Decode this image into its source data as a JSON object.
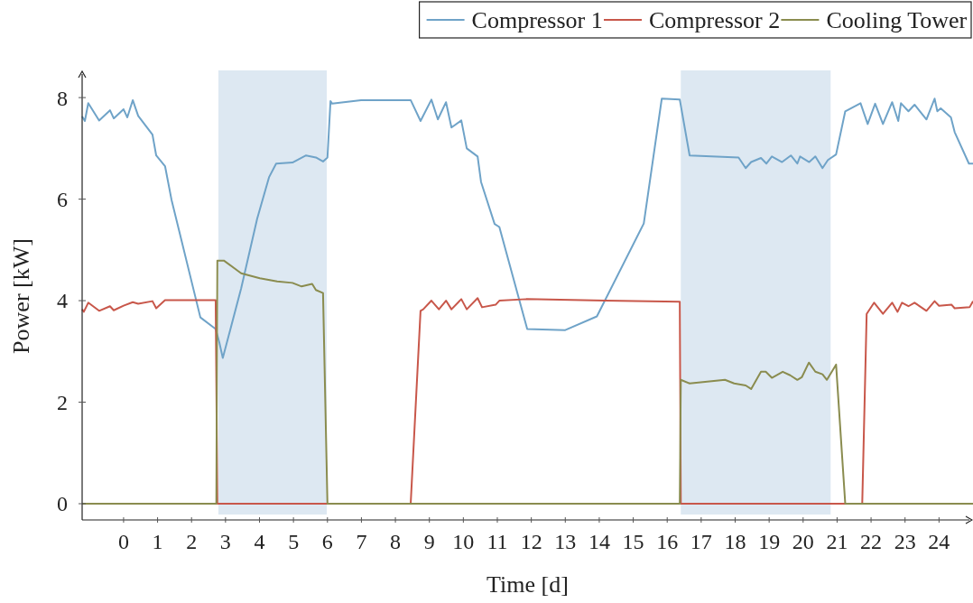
{
  "chart_data": {
    "type": "line",
    "xlabel": "Time [d]",
    "ylabel": "Power [kW]",
    "xlim": [
      -1.22,
      25.0
    ],
    "ylim": [
      -0.32,
      8.5
    ],
    "xticks": [
      0,
      1,
      2,
      3,
      4,
      5,
      6,
      7,
      8,
      9,
      10,
      11,
      12,
      13,
      14,
      15,
      16,
      17,
      18,
      19,
      20,
      21,
      22,
      23,
      24
    ],
    "yticks": [
      0,
      2,
      4,
      6,
      8
    ],
    "legend": "top right",
    "grid": false,
    "line_style": "solid",
    "marker": "none",
    "bands": [
      {
        "axis": "x",
        "from": 2.79,
        "to": 5.98,
        "color": "#dde8f2"
      },
      {
        "axis": "x",
        "from": 16.4,
        "to": 20.81,
        "color": "#dde8f2"
      }
    ],
    "series": [
      {
        "name": "Compressor 1",
        "color": "#6fa3c8",
        "x": [
          -1.22,
          -1.14,
          -1.04,
          -0.72,
          -0.4,
          -0.29,
          0,
          0.11,
          0.27,
          0.43,
          0.85,
          0.96,
          1.22,
          1.41,
          2.26,
          2.71,
          2.82,
          2.92,
          3.46,
          3.93,
          4.28,
          4.49,
          4.97,
          5.37,
          5.66,
          5.87,
          6.0,
          6.09,
          6.14,
          6.99,
          8.45,
          8.74,
          9.06,
          9.25,
          9.49,
          9.65,
          9.94,
          10.1,
          10.42,
          10.52,
          10.92,
          11.06,
          11.88,
          13.0,
          13.93,
          15.31,
          15.84,
          16.37,
          16.66,
          18.1,
          18.31,
          18.47,
          18.76,
          18.92,
          19.08,
          19.38,
          19.64,
          19.83,
          19.91,
          20.18,
          20.36,
          20.57,
          20.73,
          20.97,
          21.24,
          21.69,
          21.9,
          22.12,
          22.35,
          22.62,
          22.8,
          22.88,
          23.1,
          23.28,
          23.63,
          23.87,
          23.95,
          24.05,
          24.35,
          24.46,
          24.88,
          25.0
        ],
        "values": [
          7.63,
          7.54,
          7.89,
          7.55,
          7.75,
          7.59,
          7.77,
          7.61,
          7.95,
          7.64,
          7.27,
          6.86,
          6.65,
          5.99,
          3.67,
          3.44,
          3.17,
          2.87,
          4.24,
          5.61,
          6.43,
          6.7,
          6.72,
          6.86,
          6.82,
          6.74,
          6.82,
          7.93,
          7.88,
          7.95,
          7.95,
          7.54,
          7.96,
          7.57,
          7.91,
          7.41,
          7.55,
          7.0,
          6.84,
          6.34,
          5.51,
          5.45,
          3.44,
          3.42,
          3.69,
          5.52,
          7.98,
          7.96,
          6.86,
          6.82,
          6.61,
          6.73,
          6.81,
          6.7,
          6.84,
          6.73,
          6.86,
          6.7,
          6.84,
          6.73,
          6.84,
          6.61,
          6.77,
          6.88,
          7.73,
          7.89,
          7.48,
          7.88,
          7.48,
          7.91,
          7.54,
          7.89,
          7.73,
          7.86,
          7.57,
          7.98,
          7.73,
          7.79,
          7.61,
          7.32,
          6.7,
          6.7
        ]
      },
      {
        "name": "Compressor 2",
        "color": "#c8574a",
        "x": [
          -1.22,
          -1.17,
          -1.04,
          -0.72,
          -0.4,
          -0.29,
          0,
          0.27,
          0.43,
          0.85,
          0.96,
          1.22,
          2.71,
          2.76,
          8.45,
          8.74,
          8.82,
          9.06,
          9.28,
          9.49,
          9.65,
          9.94,
          10.1,
          10.42,
          10.55,
          10.95,
          11.06,
          11.85,
          14.17,
          16.37,
          16.4,
          21.74,
          21.87,
          22.09,
          22.35,
          22.62,
          22.78,
          22.91,
          23.1,
          23.28,
          23.63,
          23.87,
          24.0,
          24.37,
          24.46,
          24.9,
          25.0
        ],
        "values": [
          3.83,
          3.78,
          3.96,
          3.8,
          3.89,
          3.81,
          3.9,
          3.97,
          3.94,
          3.99,
          3.85,
          4.01,
          4.01,
          0,
          0,
          3.8,
          3.83,
          4.0,
          3.83,
          4.0,
          3.83,
          4.03,
          3.83,
          4.05,
          3.87,
          3.92,
          4.0,
          4.03,
          4.0,
          3.98,
          0,
          0,
          3.74,
          3.96,
          3.74,
          3.96,
          3.78,
          3.96,
          3.89,
          3.96,
          3.8,
          3.99,
          3.9,
          3.92,
          3.85,
          3.87,
          3.99
        ]
      },
      {
        "name": "Cooling Tower",
        "color": "#8a8c4f",
        "x": [
          -1.22,
          2.73,
          2.76,
          2.95,
          3.46,
          4.01,
          4.52,
          4.97,
          5.24,
          5.55,
          5.66,
          5.87,
          6.0,
          16.37,
          16.4,
          16.66,
          17.7,
          17.97,
          18.31,
          18.47,
          18.76,
          18.9,
          19.08,
          19.4,
          19.62,
          19.83,
          19.96,
          20.17,
          20.36,
          20.57,
          20.7,
          20.97,
          21.24,
          25.0
        ],
        "values": [
          0,
          0,
          4.79,
          4.79,
          4.54,
          4.44,
          4.38,
          4.35,
          4.28,
          4.33,
          4.21,
          4.15,
          0,
          0,
          2.44,
          2.37,
          2.44,
          2.37,
          2.33,
          2.26,
          2.6,
          2.6,
          2.48,
          2.6,
          2.53,
          2.44,
          2.49,
          2.78,
          2.6,
          2.55,
          2.44,
          2.74,
          0,
          0
        ]
      }
    ]
  }
}
